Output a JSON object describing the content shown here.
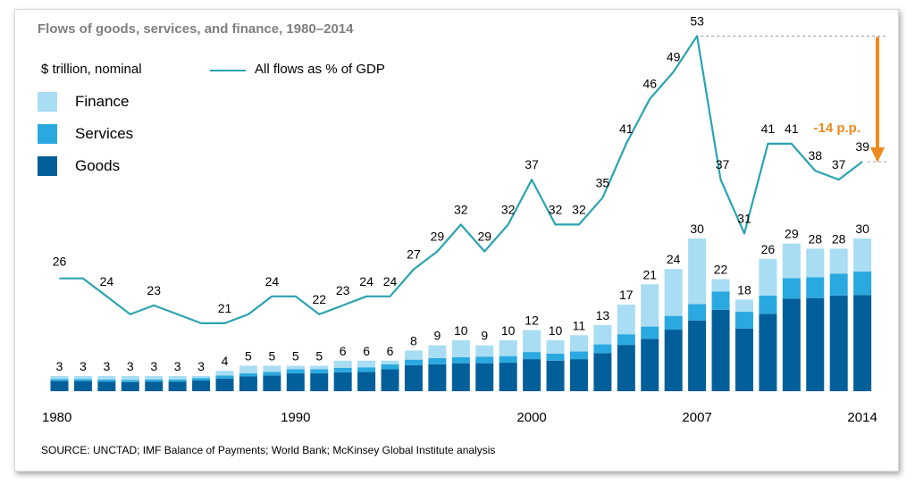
{
  "title": "Flows of goods, services, and finance, 1980–2014",
  "unit_label": "$ trillion, nominal",
  "line_legend": "All flows as % of GDP",
  "legend": [
    {
      "label": "Finance",
      "color": "#a8ddf3"
    },
    {
      "label": "Services",
      "color": "#29a9e0"
    },
    {
      "label": "Goods",
      "color": "#035f99"
    }
  ],
  "annotation": "-14 p.p.",
  "annotation_color": "#ee8a1e",
  "source": "SOURCE:  UNCTAD; IMF Balance of Payments; World Bank; McKinsey Global Institute analysis",
  "chart_data": {
    "type": "bar",
    "title": "Flows of goods, services, and finance, 1980–2014",
    "xlabel": "",
    "ylabel": "$ trillion, nominal",
    "x_tick_labels": [
      "1980",
      "1990",
      "2000",
      "2007",
      "2014"
    ],
    "categories": [
      "1980",
      "1981",
      "1982",
      "1983",
      "1984",
      "1985",
      "1986",
      "1987",
      "1988",
      "1989",
      "1990",
      "1991",
      "1992",
      "1993",
      "1994",
      "1995",
      "1996",
      "1997",
      "1998",
      "1999",
      "2000",
      "2001",
      "2002",
      "2003",
      "2004",
      "2005",
      "2006",
      "2007",
      "2008",
      "2009",
      "2010",
      "2011",
      "2012",
      "2013",
      "2014"
    ],
    "series": [
      {
        "name": "Goods",
        "color": "#035f99",
        "values": [
          2.0,
          2.0,
          1.9,
          1.8,
          1.9,
          1.9,
          2.1,
          2.5,
          2.9,
          3.1,
          3.5,
          3.5,
          3.7,
          3.8,
          4.3,
          5.1,
          5.3,
          5.5,
          5.5,
          5.6,
          6.3,
          6.0,
          6.3,
          7.5,
          9.1,
          10.3,
          12.1,
          13.9,
          16.0,
          12.3,
          15.2,
          18.2,
          18.3,
          18.8,
          18.9
        ]
      },
      {
        "name": "Services",
        "color": "#29a9e0",
        "values": [
          0.4,
          0.4,
          0.4,
          0.4,
          0.4,
          0.4,
          0.5,
          0.6,
          0.6,
          0.7,
          0.8,
          0.8,
          0.9,
          0.9,
          1.0,
          1.1,
          1.2,
          1.2,
          1.3,
          1.3,
          1.4,
          1.4,
          1.5,
          1.7,
          2.1,
          2.4,
          2.7,
          3.2,
          3.6,
          3.3,
          3.6,
          4.0,
          4.1,
          4.3,
          4.6
        ]
      },
      {
        "name": "Finance",
        "color": "#a8ddf3",
        "values": [
          0.6,
          0.6,
          0.7,
          0.8,
          0.7,
          0.7,
          0.4,
          0.9,
          1.5,
          1.2,
          0.7,
          0.7,
          1.4,
          1.3,
          0.7,
          1.8,
          2.5,
          3.3,
          2.2,
          3.1,
          4.3,
          2.6,
          3.2,
          3.8,
          5.8,
          8.3,
          9.2,
          12.9,
          2.4,
          2.4,
          7.2,
          6.8,
          5.6,
          4.9,
          6.5
        ]
      }
    ],
    "bar_totals": [
      3,
      3,
      3,
      3,
      3,
      3,
      3,
      4,
      5,
      5,
      5,
      5,
      6,
      6,
      6,
      8,
      9,
      10,
      9,
      10,
      12,
      10,
      11,
      13,
      17,
      21,
      24,
      30,
      22,
      18,
      26,
      29,
      28,
      28,
      30
    ],
    "line": {
      "name": "All flows as % of GDP",
      "values": [
        26,
        26,
        24,
        22,
        23,
        22,
        21,
        21,
        22,
        24,
        24,
        22,
        23,
        24,
        24,
        27,
        29,
        32,
        29,
        32,
        37,
        32,
        32,
        35,
        41,
        46,
        49,
        53,
        37,
        31,
        41,
        41,
        38,
        37,
        39
      ]
    },
    "line_label_indices": [
      0,
      2,
      4,
      7,
      9,
      11,
      12,
      13,
      14,
      15,
      16,
      17,
      18,
      19,
      20,
      21,
      22,
      23,
      24,
      25,
      26,
      27,
      28,
      29,
      30,
      31,
      32,
      33,
      34
    ],
    "callout": {
      "from": 53,
      "to": 39,
      "label": "-14 p.p."
    }
  }
}
